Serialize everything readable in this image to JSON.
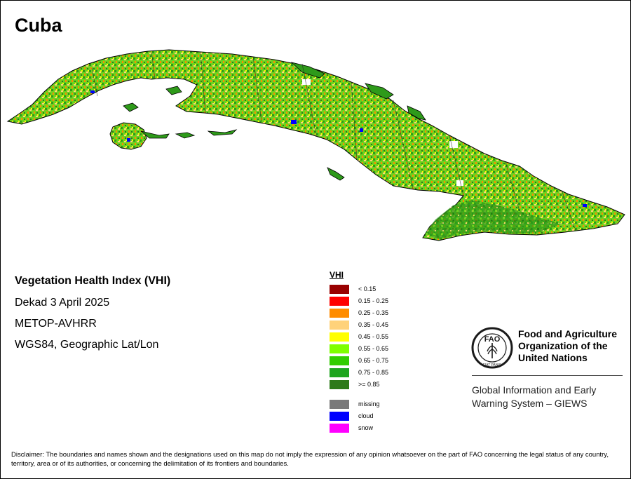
{
  "map": {
    "country": "Cuba"
  },
  "metadata": {
    "title": "Vegetation Health Index (VHI)",
    "dekad": "Dekad 3 April 2025",
    "sensor": "METOP-AVHRR",
    "projection": "WGS84, Geographic Lat/Lon"
  },
  "legend": {
    "title": "VHI",
    "classes": [
      {
        "label": "< 0.15",
        "color": "#990000"
      },
      {
        "label": "0.15 - 0.25",
        "color": "#ff0000"
      },
      {
        "label": "0.25 - 0.35",
        "color": "#ff8c00"
      },
      {
        "label": "0.35 - 0.45",
        "color": "#ffd27a"
      },
      {
        "label": "0.45 - 0.55",
        "color": "#ffff00"
      },
      {
        "label": "0.55 - 0.65",
        "color": "#7fff00"
      },
      {
        "label": "0.65 - 0.75",
        "color": "#32cd00"
      },
      {
        "label": "0.75 - 0.85",
        "color": "#1fa51f"
      },
      {
        "label": ">= 0.85",
        "color": "#2e7a1a"
      }
    ],
    "special": [
      {
        "label": "missing",
        "color": "#7a7a7a"
      },
      {
        "label": "cloud",
        "color": "#0000ff"
      },
      {
        "label": "snow",
        "color": "#ff00ff"
      }
    ]
  },
  "organization": {
    "line1": "Food and Agriculture",
    "line2": "Organization of the",
    "line3": "United Nations",
    "logo_text": "FAO",
    "logo_motto": "FIAT PANIS"
  },
  "system": {
    "line1": "Global Information and Early",
    "line2": "Warning System – GIEWS"
  },
  "disclaimer": "Disclaimer: The boundaries and names shown and the designations used on this map do not imply the expression of any opinion whatsoever on the part of FAO concerning the legal status of any country, territory, area or of its authorities, or concerning the delimitation of its frontiers and boundaries."
}
